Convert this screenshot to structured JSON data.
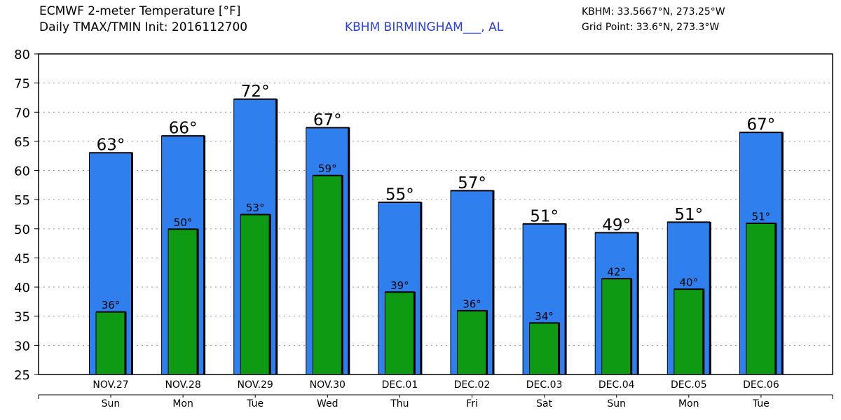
{
  "header": {
    "title": "ECMWF 2-meter Temperature [°F]",
    "subtitle": "Daily TMAX/TMIN Init: 2016112700",
    "station": "KBHM BIRMINGHAM___, AL",
    "coords": "KBHM: 33.5667°N, 273.25°W",
    "grid_point": "Grid Point: 33.6°N, 273.3°W"
  },
  "colors": {
    "tmax": "#2f80ee",
    "tmin": "#0e9a12",
    "station_text": "#2c3ee8",
    "grid": "#999999"
  },
  "chart_data": {
    "type": "bar",
    "ylim": [
      25,
      80
    ],
    "yticks": [
      25,
      30,
      35,
      40,
      45,
      50,
      55,
      60,
      65,
      70,
      75,
      80
    ],
    "grid": true,
    "categories": [
      "NOV.27",
      "NOV.28",
      "NOV.29",
      "NOV.30",
      "DEC.01",
      "DEC.02",
      "DEC.03",
      "DEC.04",
      "DEC.05",
      "DEC.06"
    ],
    "weekdays": [
      "Sun",
      "Mon",
      "Tue",
      "Wed",
      "Thu",
      "Fri",
      "Sat",
      "Sun",
      "Mon",
      "Tue"
    ],
    "series": [
      {
        "key": "tmax",
        "values": [
          63.1,
          66.0,
          72.3,
          67.4,
          54.6,
          56.6,
          50.9,
          49.4,
          51.2,
          66.6
        ],
        "labels": [
          "63°",
          "66°",
          "72°",
          "67°",
          "55°",
          "57°",
          "51°",
          "49°",
          "51°",
          "67°"
        ]
      },
      {
        "key": "tmin",
        "values": [
          35.8,
          50.0,
          52.5,
          59.2,
          39.2,
          36.0,
          33.9,
          41.5,
          39.7,
          51.0
        ],
        "labels": [
          "36°",
          "50°",
          "53°",
          "59°",
          "39°",
          "36°",
          "34°",
          "42°",
          "40°",
          "51°"
        ]
      }
    ]
  }
}
